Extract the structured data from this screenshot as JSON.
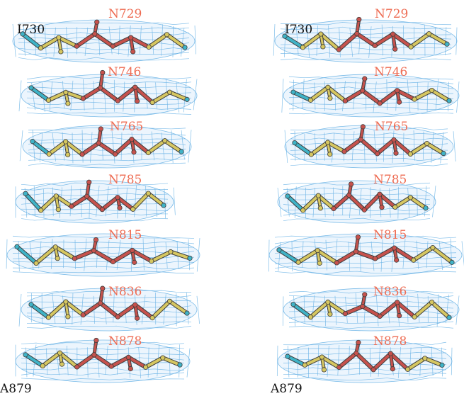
{
  "colors": {
    "background": "#ffffff",
    "mesh": "#6cb4e6",
    "red_stick": "#c7524d",
    "yellow_stick": "#d6c761",
    "cyan_stick": "#3fb3c7",
    "red_label": "#ee6c53",
    "black_label": "#111111"
  },
  "icons": [
    "electron-density-mesh",
    "ball-and-stick-residue-chain"
  ],
  "panels": [
    {
      "name": "stereo-left",
      "labels": {
        "start": "I730",
        "end": "A879",
        "residues": [
          "N729",
          "N746",
          "N765",
          "N785",
          "N815",
          "N836",
          "N878"
        ]
      }
    },
    {
      "name": "stereo-right",
      "labels": {
        "start": "I730",
        "end": "A879",
        "residues": [
          "N729",
          "N746",
          "N765",
          "N785",
          "N815",
          "N836",
          "N878"
        ]
      }
    }
  ]
}
